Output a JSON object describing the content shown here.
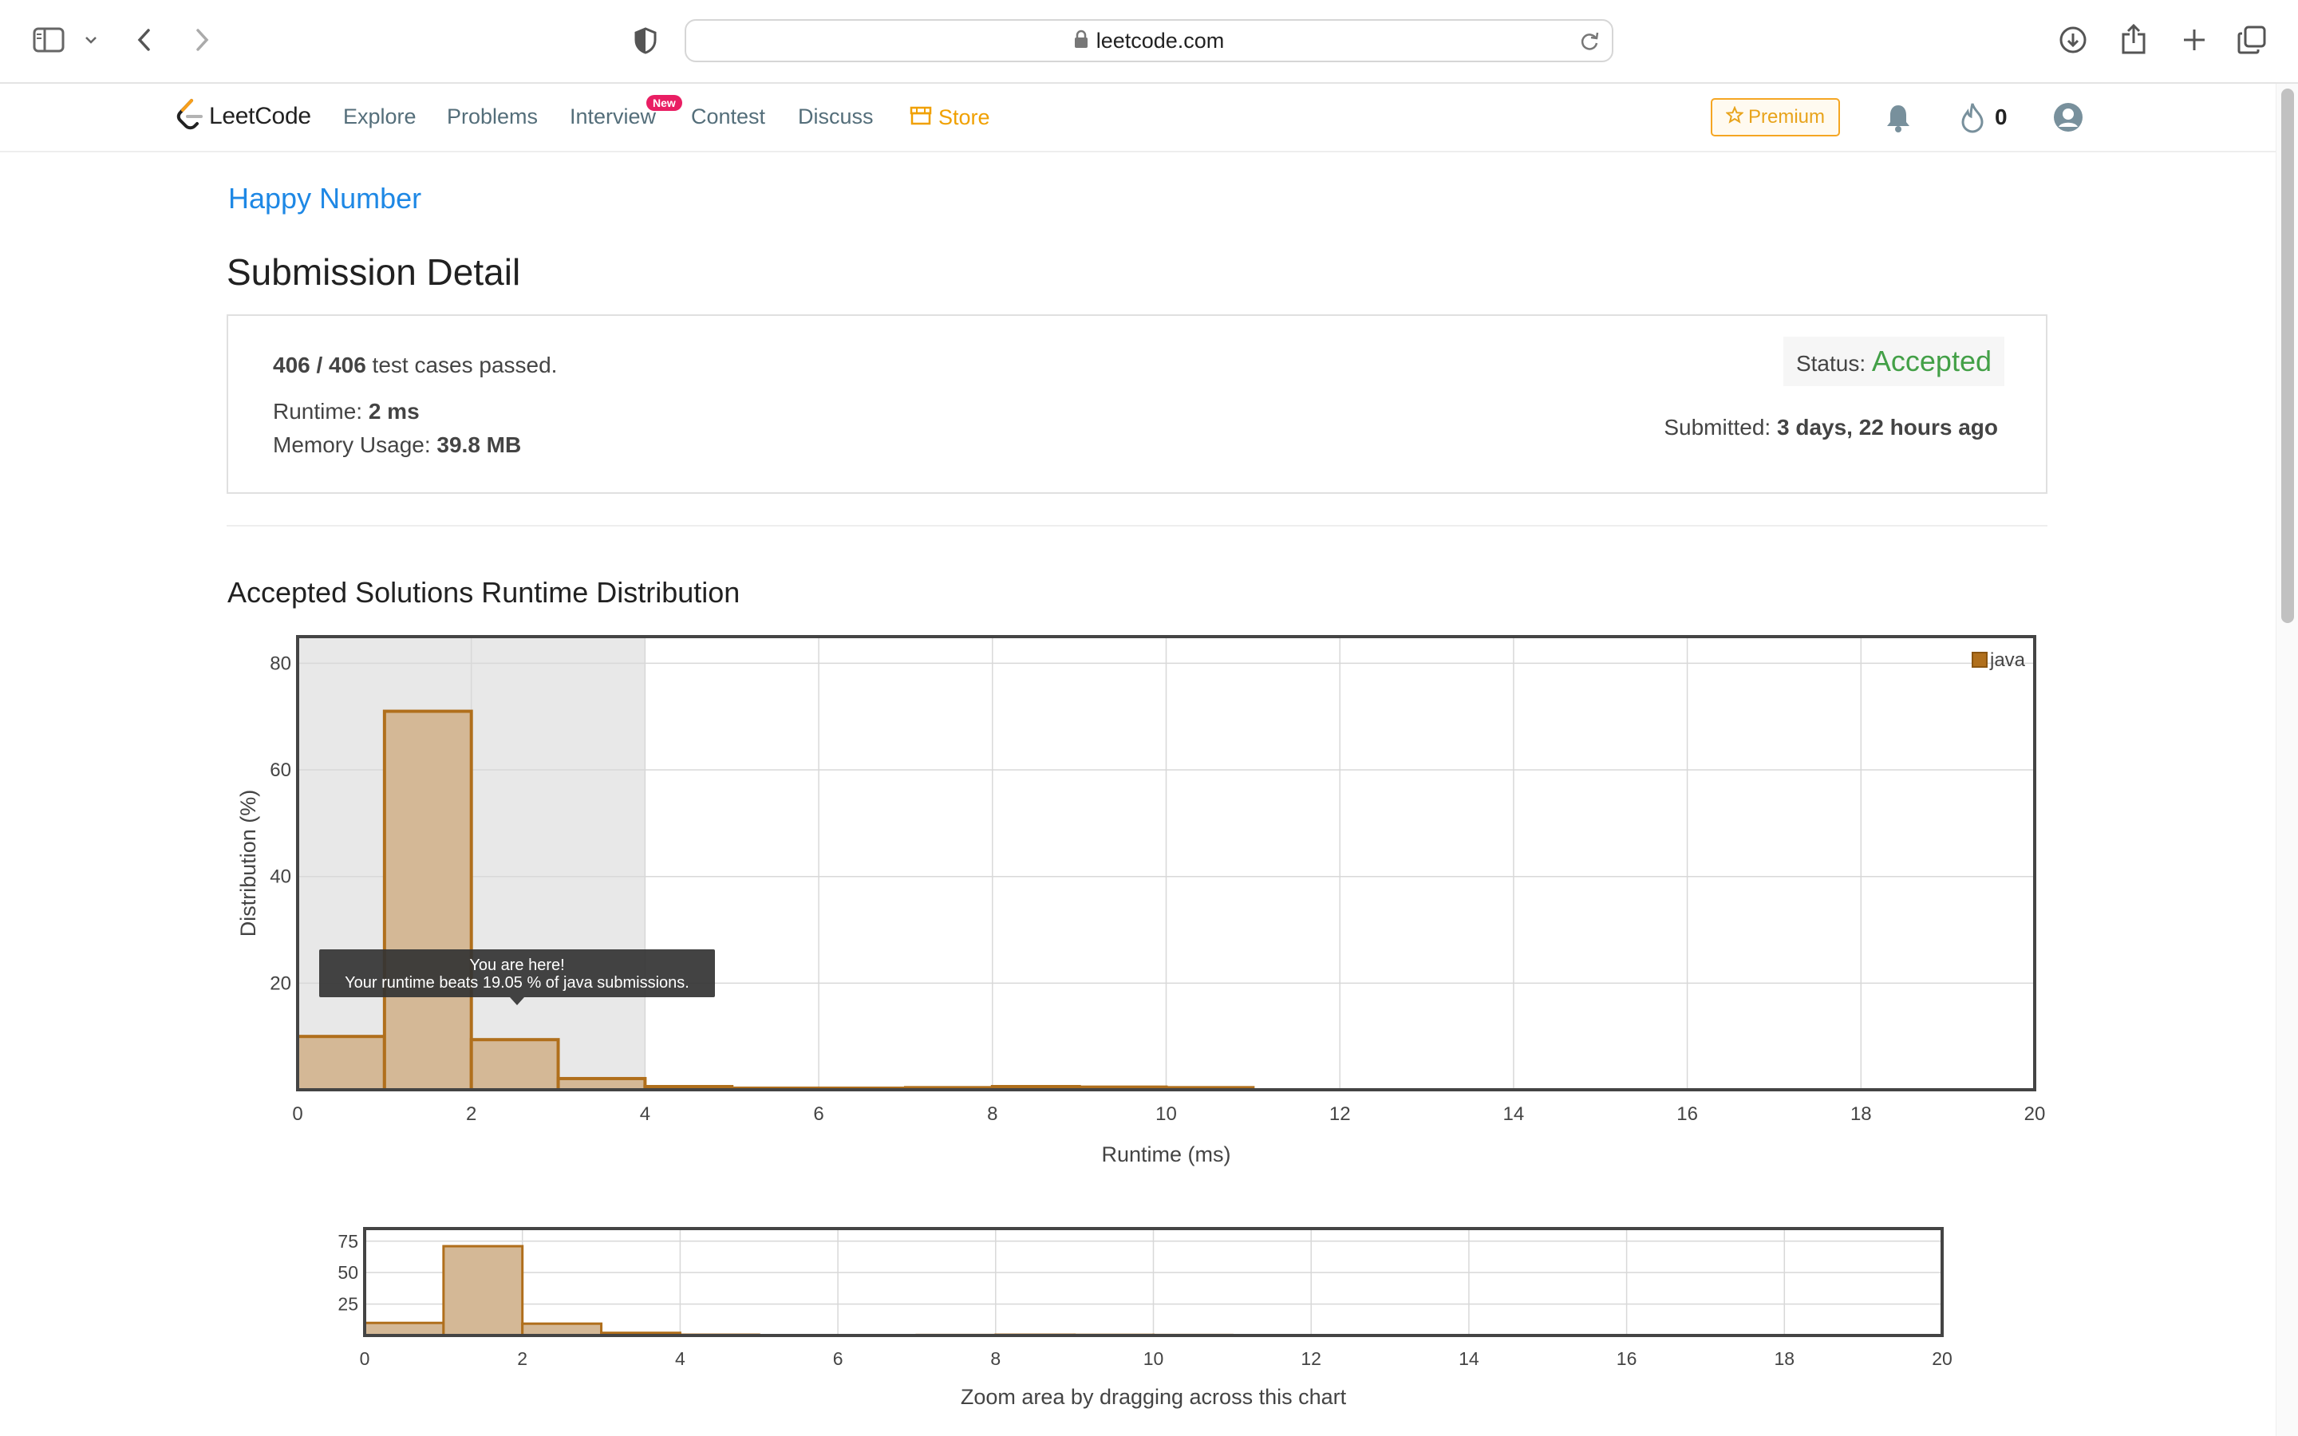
{
  "browser": {
    "url": "leetcode.com"
  },
  "nav": {
    "logo_text": "LeetCode",
    "explore": "Explore",
    "problems": "Problems",
    "interview": "Interview",
    "new_badge": "New",
    "contest": "Contest",
    "discuss": "Discuss",
    "store": "Store",
    "premium": "Premium",
    "streak": "0"
  },
  "problem_title": "Happy Number",
  "page_title": "Submission Detail",
  "result": {
    "cases_passed": "406 / 406",
    "cases_suffix": " test cases passed.",
    "runtime_label": "Runtime: ",
    "runtime_value": "2 ms",
    "memory_label": "Memory Usage: ",
    "memory_value": "39.8 MB",
    "status_label": "Status: ",
    "status_value": "Accepted",
    "submitted_label": "Submitted: ",
    "submitted_value": "3 days, 22 hours ago"
  },
  "distribution_title": "Accepted Solutions Runtime Distribution",
  "colors": {
    "bar_fill": "#d4b896",
    "bar_stroke": "#b06f1c",
    "accepted": "#43a047",
    "link": "#1e88e5",
    "store": "#f0a000"
  },
  "chart_data": [
    {
      "type": "bar",
      "x_bins": [
        0,
        1,
        2,
        3,
        4,
        5,
        6,
        7,
        8,
        9,
        10
      ],
      "bin_width": 1,
      "series": [
        {
          "name": "java",
          "values": [
            10,
            71,
            9.4,
            2.1,
            0.6,
            0.3,
            0.3,
            0.4,
            0.6,
            0.5,
            0.4
          ]
        }
      ],
      "xlabel": "Runtime (ms)",
      "ylabel": "Distribution (%)",
      "xlim": [
        0,
        20
      ],
      "ylim": [
        0,
        85
      ],
      "x_ticks": [
        0,
        2,
        4,
        6,
        8,
        10,
        12,
        14,
        16,
        18,
        20
      ],
      "y_ticks": [
        20,
        40,
        60,
        80
      ],
      "highlight_range": [
        0,
        4
      ],
      "legend": "top-right",
      "grid": true,
      "tooltip": {
        "line1": "You are here!",
        "line2": "Your runtime beats 19.05 % of java submissions."
      }
    },
    {
      "type": "bar",
      "x_bins": [
        0,
        1,
        2,
        3,
        4,
        5,
        6,
        7,
        8,
        9,
        10
      ],
      "bin_width": 1,
      "series": [
        {
          "name": "java",
          "values": [
            10,
            71,
            9.4,
            2.1,
            0.6,
            0.3,
            0.3,
            0.4,
            0.6,
            0.5,
            0.4
          ]
        }
      ],
      "xlim": [
        0,
        20
      ],
      "ylim": [
        0,
        85
      ],
      "x_ticks": [
        0,
        2,
        4,
        6,
        8,
        10,
        12,
        14,
        16,
        18,
        20
      ],
      "y_ticks": [
        25,
        50,
        75
      ],
      "caption": "Zoom area by dragging across this chart",
      "grid": true
    }
  ]
}
